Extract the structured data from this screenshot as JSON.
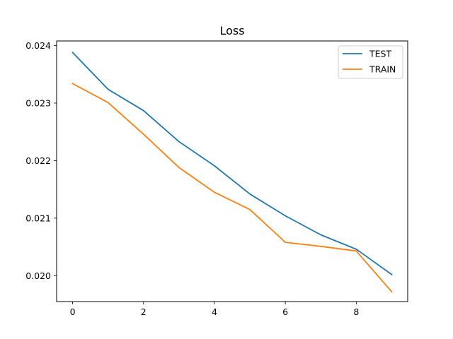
{
  "chart_data": {
    "type": "line",
    "title": "Loss",
    "xlabel": "",
    "ylabel": "",
    "x": [
      0,
      1,
      2,
      3,
      4,
      5,
      6,
      7,
      8,
      9
    ],
    "xlim": [
      -0.45,
      9.45
    ],
    "ylim": [
      0.01955,
      0.02408
    ],
    "xticks": [
      0,
      2,
      4,
      6,
      8
    ],
    "yticks": [
      0.02,
      0.021,
      0.022,
      0.023,
      0.024
    ],
    "xtick_labels": [
      "0",
      "2",
      "4",
      "6",
      "8"
    ],
    "ytick_labels": [
      "0.020",
      "0.021",
      "0.022",
      "0.023",
      "0.024"
    ],
    "grid": false,
    "legend_position": "top-right",
    "series": [
      {
        "name": "TEST",
        "color": "#1f77b4",
        "values": [
          0.02388,
          0.02324,
          0.02287,
          0.02233,
          0.02191,
          0.02142,
          0.02104,
          0.02071,
          0.02046,
          0.02002
        ]
      },
      {
        "name": "TRAIN",
        "color": "#ff7f0e",
        "values": [
          0.02334,
          0.02301,
          0.02246,
          0.02188,
          0.02145,
          0.02115,
          0.02058,
          0.02051,
          0.02043,
          0.01972
        ]
      }
    ]
  }
}
